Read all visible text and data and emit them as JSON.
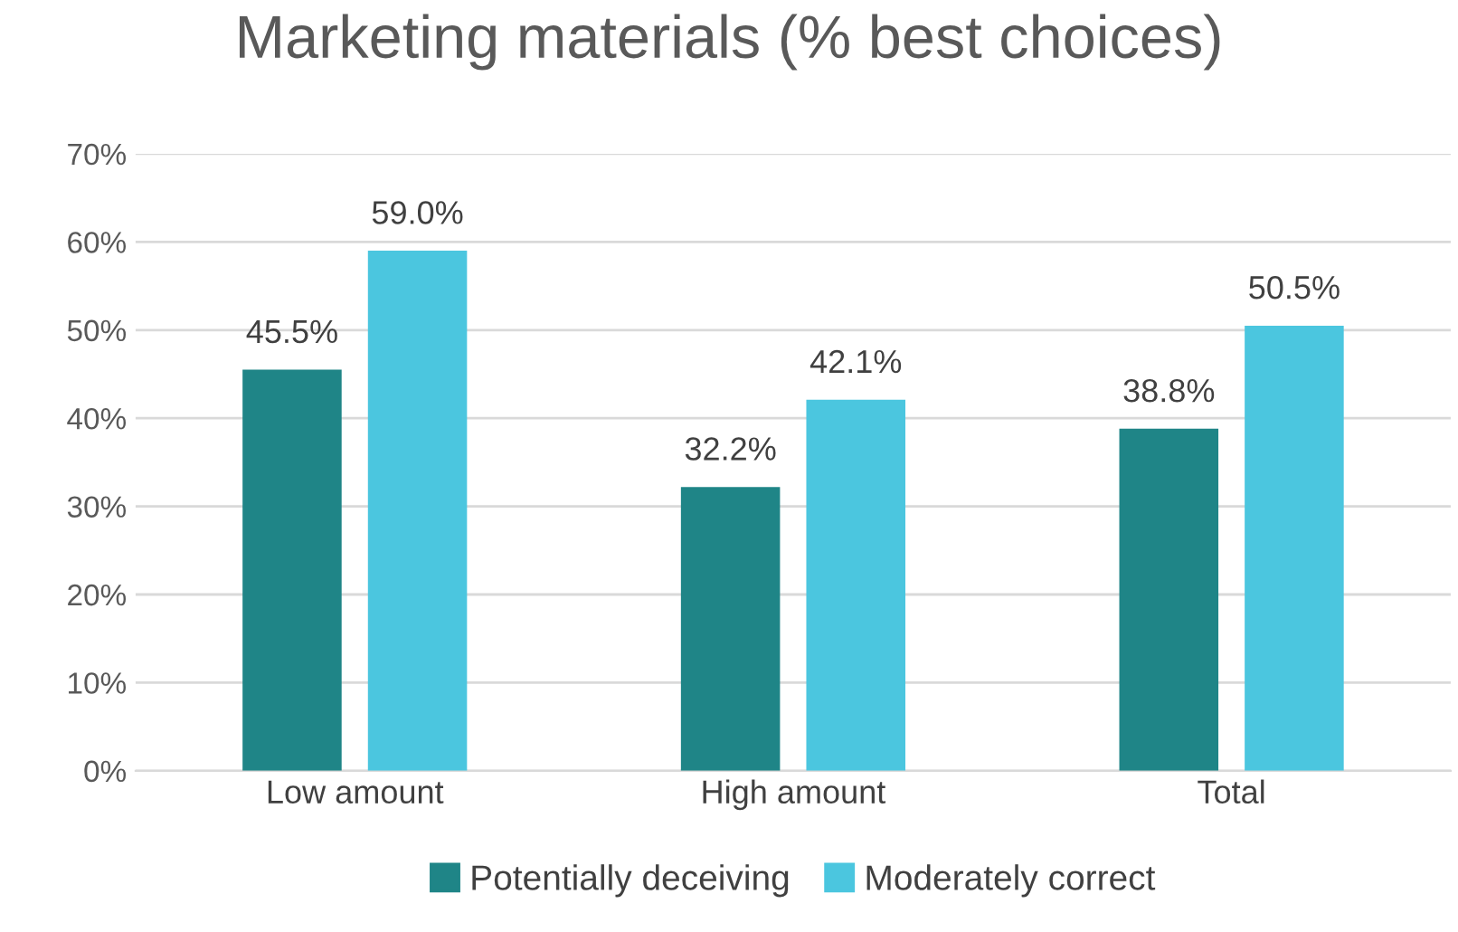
{
  "chart_data": {
    "type": "bar",
    "title": "Marketing materials (% best choices)",
    "categories": [
      "Low amount",
      "High amount",
      "Total"
    ],
    "series": [
      {
        "name": "Potentially deceiving",
        "color": "#1f8587",
        "values": [
          45.5,
          32.2,
          38.8
        ],
        "value_labels": [
          "45.5%",
          "32.2%",
          "38.8%"
        ]
      },
      {
        "name": "Moderately correct",
        "color": "#4bc6df",
        "values": [
          59.0,
          42.1,
          50.5
        ],
        "value_labels": [
          "59.0%",
          "42.1%",
          "50.5%"
        ]
      }
    ],
    "ylim": [
      0,
      70
    ],
    "yticks": [
      {
        "value": 0,
        "label": "0%"
      },
      {
        "value": 10,
        "label": "10%"
      },
      {
        "value": 20,
        "label": "20%"
      },
      {
        "value": 30,
        "label": "30%"
      },
      {
        "value": 40,
        "label": "40%"
      },
      {
        "value": 50,
        "label": "50%"
      },
      {
        "value": 60,
        "label": "60%"
      },
      {
        "value": 70,
        "label": "70%"
      }
    ],
    "grid": "y",
    "legend": "bottom"
  }
}
